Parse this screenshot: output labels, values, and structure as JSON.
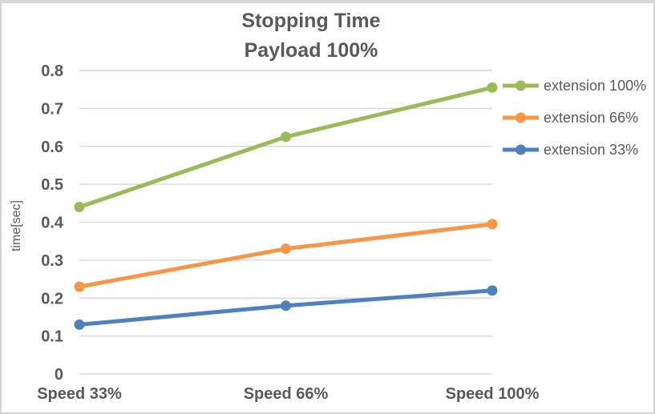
{
  "chart_data": {
    "type": "line",
    "title": "Stopping Time",
    "subtitle": "Payload 100%",
    "ylabel": "time[sec]",
    "xlabel": "",
    "categories": [
      "Speed 33%",
      "Speed 66%",
      "Speed 100%"
    ],
    "series": [
      {
        "name": "extension 100%",
        "color": "#9BBB59",
        "values": [
          0.44,
          0.625,
          0.755
        ]
      },
      {
        "name": "extension 66%",
        "color": "#F79646",
        "values": [
          0.23,
          0.33,
          0.395
        ]
      },
      {
        "name": "extension 33%",
        "color": "#4F81BD",
        "values": [
          0.13,
          0.18,
          0.22
        ]
      }
    ],
    "ylim": [
      0,
      0.8
    ],
    "ytick_step": 0.1,
    "ytick_labels": [
      "0",
      "0.1",
      "0.2",
      "0.3",
      "0.4",
      "0.5",
      "0.6",
      "0.7",
      "0.8"
    ],
    "grid": true,
    "legend_position": "right",
    "colors": {
      "text": "#595959",
      "gridline": "#D9D9D9",
      "border": "#D4D4D4"
    }
  }
}
